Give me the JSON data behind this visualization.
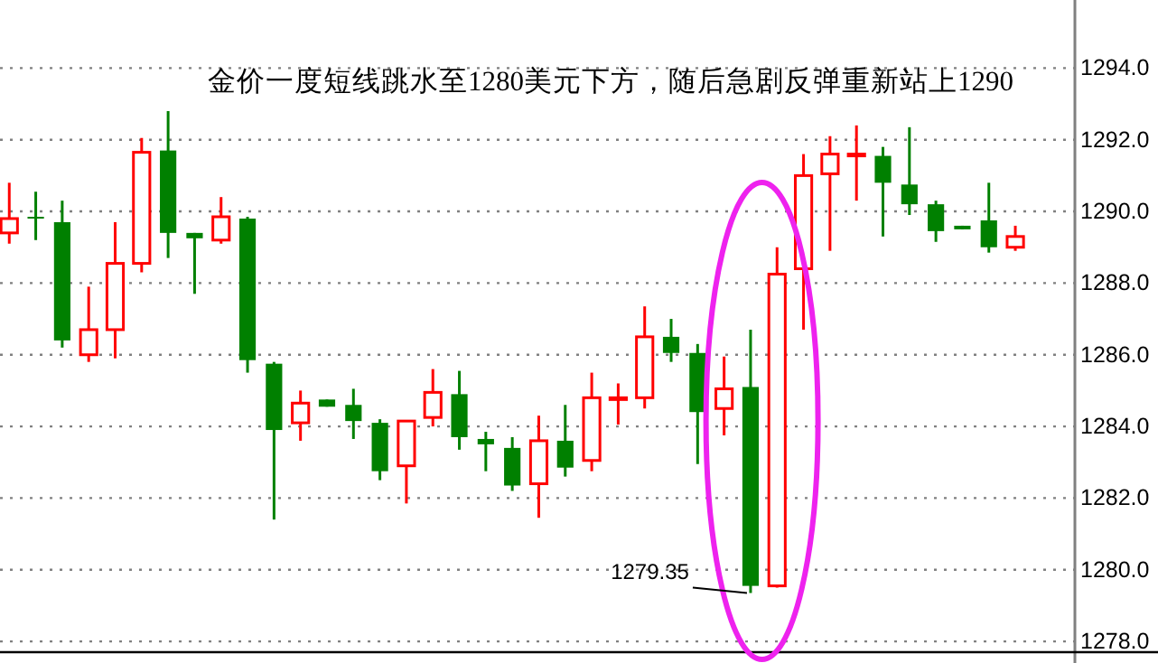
{
  "chart_data": {
    "type": "candlestick",
    "title": "金价一度短线跳水至1280美元下方，随后急剧反弹重新站上1290",
    "categories": [
      null,
      null,
      null,
      null,
      null,
      null,
      null,
      null,
      null,
      null,
      null,
      null,
      null,
      null,
      null,
      null,
      null,
      null,
      null,
      null,
      null,
      null,
      null,
      null,
      null,
      null,
      null,
      null,
      null,
      null,
      null,
      null,
      null,
      null,
      null,
      null,
      null,
      null,
      null
    ],
    "ohlc": [
      [
        1289.4,
        1290.8,
        1289.1,
        1289.8
      ],
      [
        1289.85,
        1290.55,
        1289.2,
        1289.8
      ],
      [
        1289.7,
        1290.3,
        1286.2,
        1286.4
      ],
      [
        1286.0,
        1287.9,
        1285.8,
        1286.7
      ],
      [
        1286.7,
        1289.7,
        1285.9,
        1288.55
      ],
      [
        1288.55,
        1292.05,
        1288.3,
        1291.65
      ],
      [
        1291.7,
        1292.8,
        1288.7,
        1289.4
      ],
      [
        1289.4,
        1289.4,
        1287.7,
        1289.25
      ],
      [
        1289.2,
        1290.4,
        1289.1,
        1289.85
      ],
      [
        1289.8,
        1289.85,
        1285.5,
        1285.85
      ],
      [
        1285.75,
        1285.8,
        1281.4,
        1283.9
      ],
      [
        1284.1,
        1285.0,
        1283.6,
        1284.65
      ],
      [
        1284.75,
        1284.75,
        1284.55,
        1284.55
      ],
      [
        1284.6,
        1285.05,
        1283.65,
        1284.15
      ],
      [
        1284.1,
        1284.2,
        1282.5,
        1282.75
      ],
      [
        1282.9,
        1284.15,
        1281.85,
        1284.15
      ],
      [
        1284.25,
        1285.6,
        1284.0,
        1284.95
      ],
      [
        1284.9,
        1285.55,
        1283.35,
        1283.7
      ],
      [
        1283.65,
        1283.85,
        1282.75,
        1283.5
      ],
      [
        1283.4,
        1283.7,
        1282.2,
        1282.35
      ],
      [
        1282.4,
        1284.3,
        1281.45,
        1283.6
      ],
      [
        1283.6,
        1284.6,
        1282.6,
        1282.85
      ],
      [
        1283.05,
        1285.5,
        1282.75,
        1284.8
      ],
      [
        1284.75,
        1285.2,
        1284.05,
        1284.8
      ],
      [
        1284.8,
        1287.35,
        1284.5,
        1286.5
      ],
      [
        1286.5,
        1287.0,
        1285.8,
        1286.05
      ],
      [
        1286.05,
        1286.3,
        1282.95,
        1284.4
      ],
      [
        1284.5,
        1285.95,
        1283.75,
        1285.05
      ],
      [
        1285.1,
        1286.7,
        1279.35,
        1279.55
      ],
      [
        1279.55,
        1289.0,
        1279.5,
        1288.25
      ],
      [
        1288.4,
        1291.6,
        1286.7,
        1291.0
      ],
      [
        1291.05,
        1292.1,
        1288.9,
        1291.6
      ],
      [
        1291.55,
        1292.4,
        1290.3,
        1291.6
      ],
      [
        1291.55,
        1291.8,
        1289.3,
        1290.8
      ],
      [
        1290.75,
        1292.35,
        1289.9,
        1290.2
      ],
      [
        1290.2,
        1290.3,
        1289.15,
        1289.45
      ],
      [
        1289.6,
        1289.6,
        1289.5,
        1289.5
      ],
      [
        1289.75,
        1290.8,
        1288.85,
        1289.0
      ],
      [
        1289.0,
        1289.6,
        1288.9,
        1289.3
      ]
    ],
    "colors": [
      "#ff0000",
      "#008000",
      "#008000",
      "#ff0000",
      "#ff0000",
      "#ff0000",
      "#008000",
      "#008000",
      "#ff0000",
      "#008000",
      "#008000",
      "#ff0000",
      "#008000",
      "#008000",
      "#008000",
      "#ff0000",
      "#ff0000",
      "#008000",
      "#008000",
      "#008000",
      "#ff0000",
      "#008000",
      "#ff0000",
      "#ff0000",
      "#ff0000",
      "#008000",
      "#008000",
      "#ff0000",
      "#008000",
      "#ff0000",
      "#ff0000",
      "#ff0000",
      "#ff0000",
      "#008000",
      "#008000",
      "#008000",
      "#008000",
      "#008000",
      "#ff0000"
    ],
    "ylim": [
      1277.7,
      1295.9
    ],
    "yticks": [
      {
        "value": 1278,
        "label": "1278.0"
      },
      {
        "value": 1280,
        "label": "1280.0"
      },
      {
        "value": 1282,
        "label": "1282.0"
      },
      {
        "value": 1284,
        "label": "1284.0"
      },
      {
        "value": 1286,
        "label": "1286.0"
      },
      {
        "value": 1288,
        "label": "1288.0"
      },
      {
        "value": 1290,
        "label": "1290.0"
      },
      {
        "value": 1292,
        "label": "1292.0"
      },
      {
        "value": 1294,
        "label": "1294.0"
      }
    ],
    "grid": "y",
    "annotations": [
      "1279.35"
    ]
  }
}
